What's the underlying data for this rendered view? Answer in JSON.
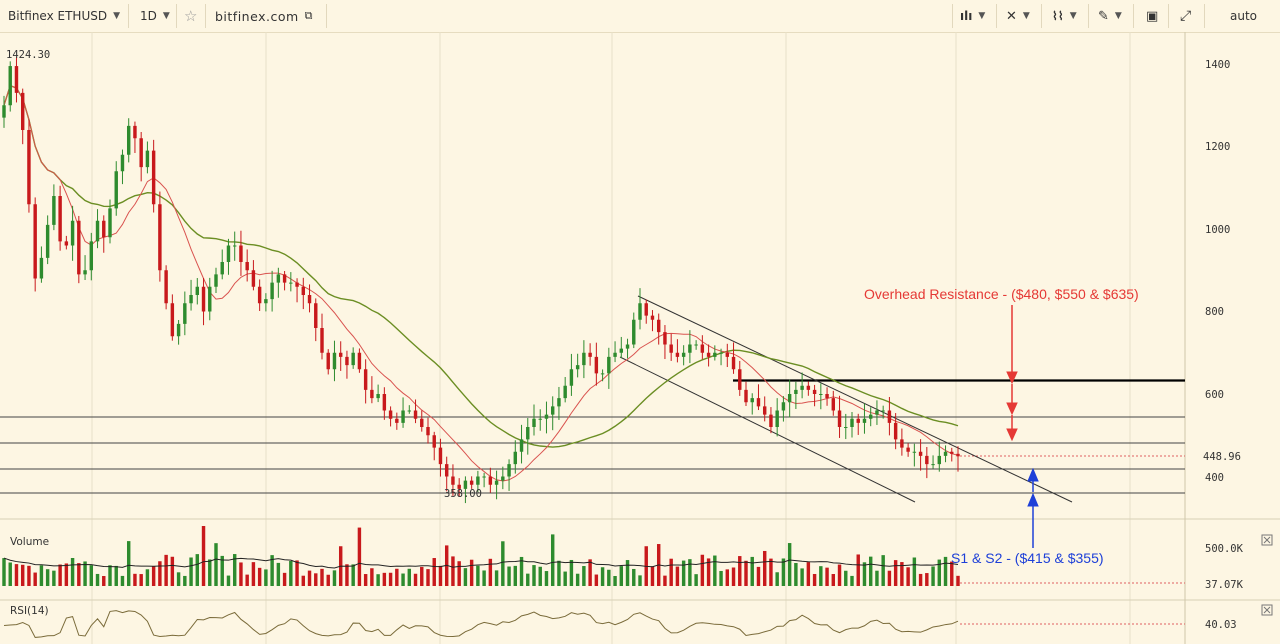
{
  "toolbar": {
    "symbol": "Bitfinex ETHUSD",
    "interval": "1D",
    "site": "bitfinex.com",
    "scale_mode": "auto",
    "buttons": [
      "candles-style-icon",
      "indicators-icon",
      "compare-icon",
      "drawing-icon",
      "snapshot-icon",
      "fullscreen-icon"
    ]
  },
  "colors": {
    "background": "#fdf6e3",
    "up": "#2e8b2e",
    "down": "#c8191c",
    "ma_fast": "#d9534f",
    "ma_slow": "#6b8e23",
    "resistance_text": "#e53935",
    "support_text": "#1e40d8"
  },
  "price_axis": {
    "ticks": [
      "1400",
      "1200",
      "1000",
      "800",
      "600",
      "400"
    ],
    "last_price": "448.96",
    "high_label": "1424.30",
    "low_label": "358.00"
  },
  "annotations": {
    "resistance": "Overhead Resistance - ($480, $550 & $635)",
    "support": "S1 & S2 - ($415 & $355)"
  },
  "volume_pane": {
    "label": "Volume",
    "ticks": [
      "500.0K"
    ],
    "last_value": "37.07K"
  },
  "rsi_pane": {
    "label": "RSI(14)",
    "last_value": "40.03"
  },
  "chart_data": {
    "type": "candlestick",
    "symbol": "ETHUSD",
    "interval": "1D",
    "ylim": [
      300,
      1470
    ],
    "close": [
      1300,
      1395,
      1330,
      1240,
      1060,
      880,
      930,
      1010,
      1080,
      970,
      960,
      1020,
      890,
      900,
      970,
      1020,
      980,
      1050,
      1140,
      1180,
      1250,
      1220,
      1150,
      1190,
      1060,
      900,
      820,
      740,
      770,
      820,
      840,
      860,
      800,
      860,
      890,
      920,
      960,
      960,
      920,
      900,
      860,
      820,
      830,
      870,
      890,
      870,
      870,
      860,
      840,
      820,
      760,
      700,
      660,
      700,
      690,
      670,
      700,
      660,
      610,
      590,
      600,
      560,
      540,
      530,
      560,
      560,
      540,
      520,
      500,
      470,
      430,
      400,
      380,
      370,
      390,
      380,
      400,
      400,
      380,
      390,
      400,
      430,
      460,
      490,
      520,
      540,
      540,
      550,
      570,
      590,
      620,
      660,
      670,
      700,
      690,
      650,
      650,
      690,
      700,
      710,
      720,
      780,
      820,
      790,
      780,
      750,
      720,
      700,
      690,
      700,
      720,
      720,
      700,
      690,
      700,
      700,
      690,
      660,
      610,
      580,
      590,
      570,
      550,
      520,
      560,
      580,
      600,
      610,
      620,
      610,
      600,
      600,
      590,
      560,
      520,
      520,
      540,
      530,
      540,
      550,
      560,
      560,
      530,
      490,
      470,
      460,
      460,
      450,
      430,
      430,
      450,
      460,
      455,
      449
    ],
    "horizontal_levels": [
      635,
      550,
      480,
      415,
      355
    ],
    "annotations": [
      "Overhead Resistance - ($480, $550 & $635)",
      "S1 & S2 - ($415 & $355)"
    ],
    "indicators": [
      "MA fast",
      "MA slow",
      "Volume",
      "RSI(14)"
    ],
    "volume_axis_label": "500.0K",
    "rsi_last": 40.03
  }
}
